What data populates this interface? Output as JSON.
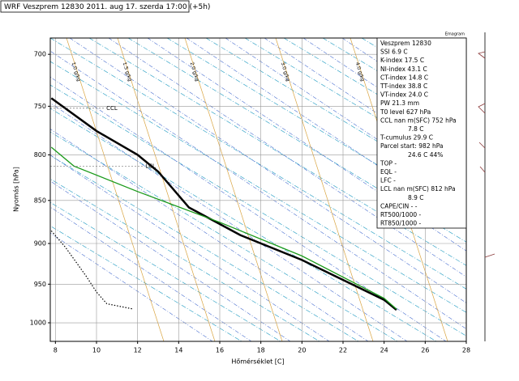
{
  "chart_data": {
    "type": "line",
    "title": "WRF Veszprem 12830 2011. aug 17. szerda 17:00 (+5h)",
    "diagram_label": "Emagram",
    "x_label": "Hőmérséklet [C]",
    "y_label": "Nyomás [hPa]",
    "xlim": [
      7.75,
      28
    ],
    "xticks": [
      8,
      10,
      12,
      14,
      16,
      18,
      20,
      22,
      24,
      26,
      28
    ],
    "ylim": [
      685,
      1025
    ],
    "yticks": [
      700,
      750,
      800,
      850,
      900,
      950,
      1000
    ],
    "log_y": true,
    "y_inverted": true,
    "grid": true,
    "series": [
      {
        "color": "#000000",
        "width": 2.5,
        "dash": "solid",
        "x": [
          7.8,
          10,
          12,
          13,
          14.5,
          17,
          20,
          24,
          24.6
        ],
        "values": [
          742,
          775,
          800,
          818,
          858,
          890,
          920,
          970,
          983
        ]
      },
      {
        "color": "#1a9a1a",
        "width": 1.3,
        "dash": "solid",
        "x": [
          7.8,
          8.9,
          12,
          16,
          20,
          24,
          24.6
        ],
        "values": [
          792,
          812,
          840,
          875,
          915,
          968,
          982
        ]
      },
      {
        "color": "#000000",
        "width": 1.2,
        "dash": "dotted",
        "x": [
          7.8,
          8.5,
          9.5,
          10,
          10.5,
          11.8
        ],
        "values": [
          885,
          905,
          940,
          960,
          975,
          982
        ]
      }
    ],
    "annotations": [
      {
        "text": "CCL",
        "x": 10.4,
        "y": 752
      },
      {
        "text": "LCL",
        "x": 12.3,
        "y": 812
      }
    ],
    "mixing_ratio_labels": [
      "1.0 g/kg",
      "1.5 g/kg",
      "2.0 g/kg",
      "3.0 g/kg",
      "4.0 g/kg"
    ],
    "info": [
      "Veszprem 12830",
      "SSI  6.9 C",
      "K-index  17.5 C",
      "NI-index  43.1 C",
      "CT-index  14.8 C",
      "TT-index  38.8 C",
      "VT-index  24.0 C",
      "PW  21.3 mm",
      "T0 level  627 hPa",
      "CCL  nan m(SFC)  752 hPa",
      "7.8 C",
      "T-cumulus  29.9 C",
      "Parcel start:  982 hPa",
      "24.6 C  44%",
      "TOP  -",
      "EQL  -",
      "LFC  -",
      "LCL  nan m(SFC)  812 hPa",
      "8.9 C",
      "CAPE/CIN  -  -",
      "RT500/1000  -",
      "RT850/1000  -"
    ]
  }
}
